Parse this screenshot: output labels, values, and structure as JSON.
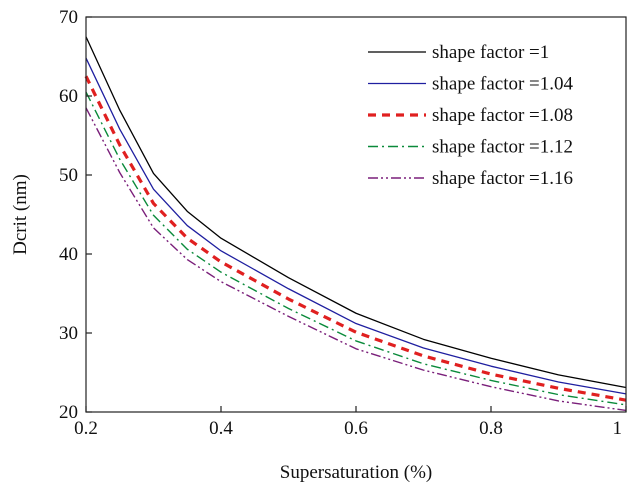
{
  "chart_data": {
    "type": "line",
    "title": "",
    "xlabel": "Supersaturation (%)",
    "ylabel": "Dcrit (nm)",
    "xlim": [
      0.2,
      1
    ],
    "ylim": [
      20,
      70
    ],
    "x_ticks": [
      0.2,
      0.4,
      0.6,
      0.8,
      1
    ],
    "x_tick_labels": [
      "0.2",
      "0.4",
      "0.6",
      "0.8",
      "1"
    ],
    "y_ticks": [
      20,
      30,
      40,
      50,
      60,
      70
    ],
    "y_tick_labels": [
      "20",
      "30",
      "40",
      "50",
      "60",
      "70"
    ],
    "grid": false,
    "legend_position": "top-right",
    "x": [
      0.2,
      0.25,
      0.3,
      0.35,
      0.4,
      0.5,
      0.6,
      0.7,
      0.8,
      0.9,
      1.0
    ],
    "series": [
      {
        "name": "shape factor =1",
        "values": [
          67.5,
          58.2,
          50.2,
          45.4,
          42.0,
          37.0,
          32.5,
          29.2,
          26.8,
          24.7,
          23.1
        ],
        "color": "#000000",
        "dash": "solid"
      },
      {
        "name": "shape factor =1.04",
        "values": [
          64.8,
          55.8,
          48.2,
          43.6,
          40.4,
          35.6,
          31.2,
          28.1,
          25.8,
          23.8,
          22.3
        ],
        "color": "#1f1fa0",
        "dash": "solid"
      },
      {
        "name": "shape factor =1.08",
        "values": [
          62.5,
          53.8,
          46.4,
          42.0,
          39.0,
          34.3,
          30.1,
          27.1,
          24.8,
          23.0,
          21.5
        ],
        "color": "#e02020",
        "dash": "dash"
      },
      {
        "name": "shape factor =1.12",
        "values": [
          60.5,
          52.0,
          44.9,
          40.6,
          37.7,
          33.1,
          29.0,
          26.1,
          24.0,
          22.2,
          20.9
        ],
        "color": "#0a8a3a",
        "dash": "dashdot"
      },
      {
        "name": "shape factor =1.16",
        "values": [
          58.5,
          50.3,
          43.3,
          39.3,
          36.5,
          32.1,
          28.0,
          25.3,
          23.2,
          21.4,
          20.2
        ],
        "color": "#7a1f7a",
        "dash": "dashdotdot"
      }
    ]
  }
}
